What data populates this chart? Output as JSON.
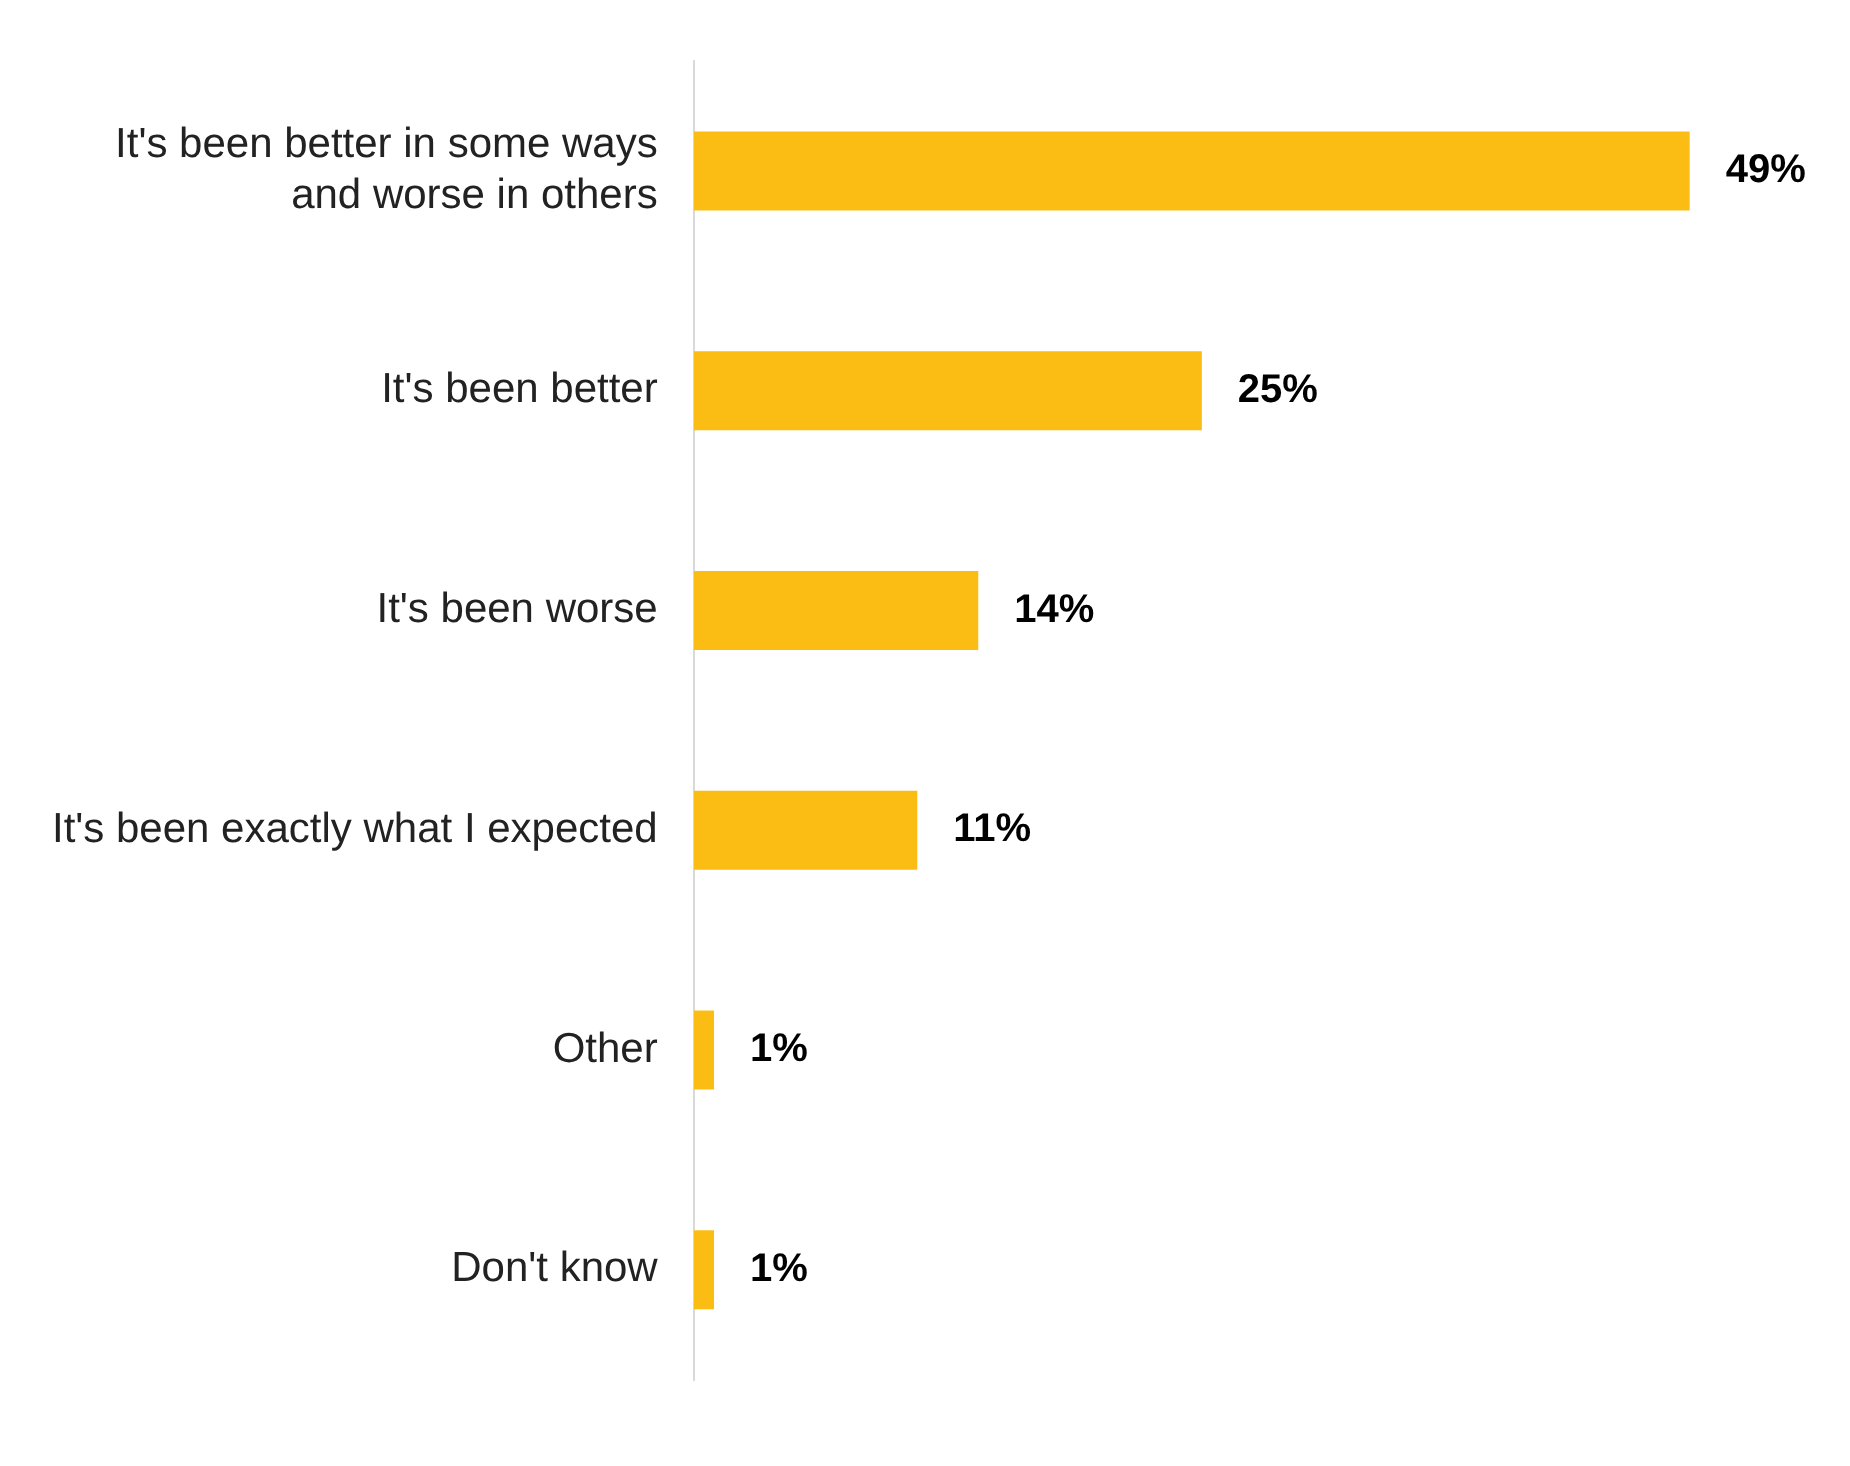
{
  "chart_data": {
    "type": "bar",
    "orientation": "horizontal",
    "categories": [
      "It's been better in some ways and worse in others",
      "It's been better",
      "It's been worse",
      "It's been exactly what I expected",
      "Other",
      "Don't know"
    ],
    "values": [
      49,
      25,
      14,
      11,
      1,
      1
    ],
    "value_labels": [
      "49%",
      "25%",
      "14%",
      "11%",
      "1%",
      "1%"
    ],
    "color": "#fbbd14",
    "legend": false
  }
}
